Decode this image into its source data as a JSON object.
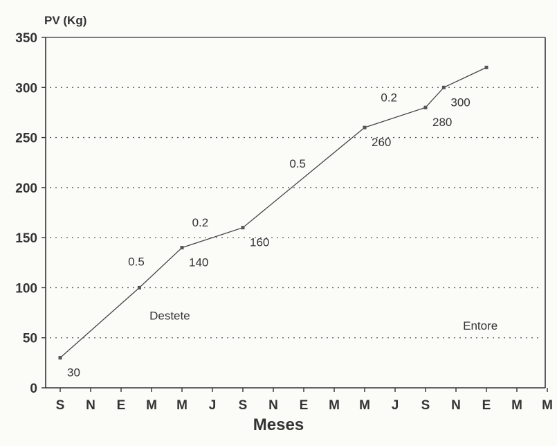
{
  "chart_data": {
    "type": "line",
    "ylabel": "PV (Kg)",
    "xlabel": "Meses",
    "ylim": [
      0,
      350
    ],
    "yticks": [
      0,
      50,
      100,
      150,
      200,
      250,
      300,
      350
    ],
    "categories": [
      "S",
      "N",
      "E",
      "M",
      "M",
      "J",
      "S",
      "N",
      "E",
      "M",
      "M",
      "J",
      "S",
      "N",
      "E",
      "M",
      "M"
    ],
    "grid": true,
    "series": [
      {
        "points": [
          {
            "x": 0,
            "y": 30,
            "label": "30"
          },
          {
            "x": 2.6,
            "y": 100,
            "label": ""
          },
          {
            "x": 4,
            "y": 140,
            "label": "140"
          },
          {
            "x": 6,
            "y": 160,
            "label": "160"
          },
          {
            "x": 10,
            "y": 260,
            "label": "260"
          },
          {
            "x": 12,
            "y": 280,
            "label": "280"
          },
          {
            "x": 12.6,
            "y": 300,
            "label": "300"
          },
          {
            "x": 14,
            "y": 320,
            "label": ""
          }
        ]
      }
    ],
    "rate_labels": [
      {
        "text": "0.5",
        "x": 2.5,
        "y": 122
      },
      {
        "text": "0.2",
        "x": 4.6,
        "y": 161
      },
      {
        "text": "0.5",
        "x": 7.8,
        "y": 220
      },
      {
        "text": "0.2",
        "x": 10.8,
        "y": 286
      }
    ],
    "annotations": [
      {
        "text": "Destete",
        "x": 3.6,
        "y": 68
      },
      {
        "text": "Entore",
        "x": 13.8,
        "y": 58
      }
    ]
  }
}
